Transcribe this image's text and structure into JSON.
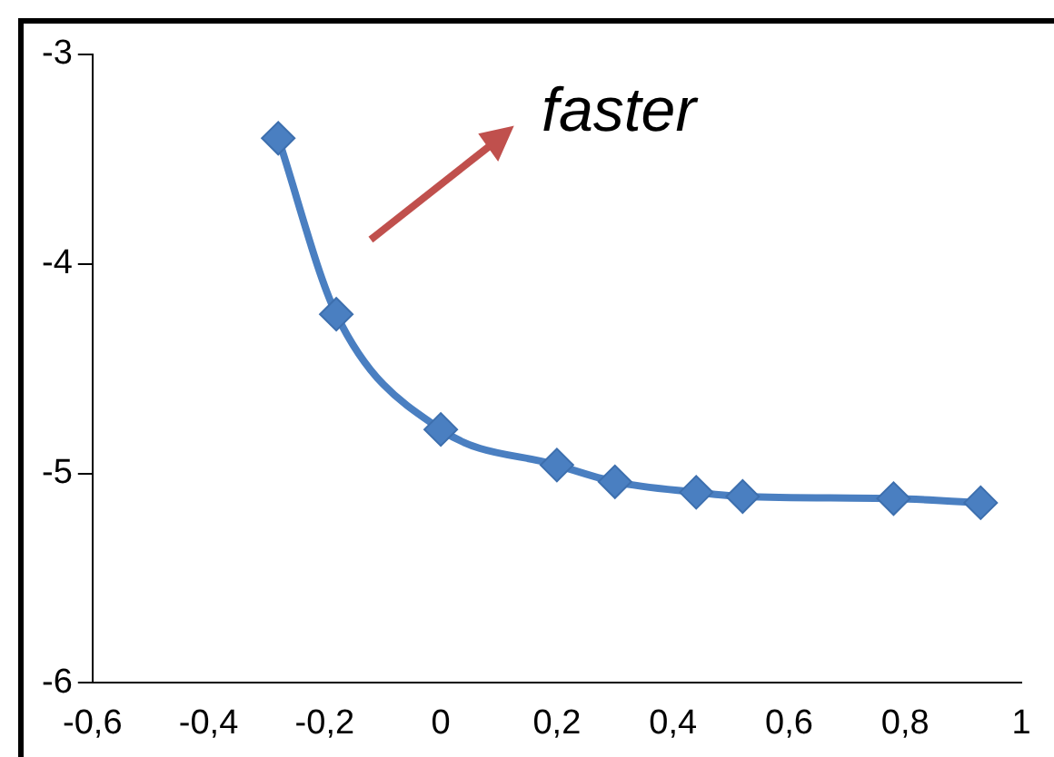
{
  "chart_data": {
    "type": "line",
    "x": [
      -0.28,
      -0.18,
      0,
      0.2,
      0.3,
      0.44,
      0.52,
      0.78,
      0.93
    ],
    "series": [
      {
        "color": "#4a7fc1",
        "values": [
          -3.4,
          -4.24,
          -4.79,
          -4.96,
          -5.04,
          -5.09,
          -5.11,
          -5.12,
          -5.14
        ]
      }
    ],
    "xlim": [
      -0.6,
      1
    ],
    "xticks": [
      {
        "value": -0.6,
        "label": "-0,6"
      },
      {
        "value": -0.4,
        "label": "-0,4"
      },
      {
        "value": -0.2,
        "label": "-0,2"
      },
      0,
      {
        "value": 0.2,
        "label": "0,2"
      },
      {
        "value": 0.4,
        "label": "0,4"
      },
      {
        "value": 0.6,
        "label": "0,6"
      },
      {
        "value": 0.8,
        "label": "0,8"
      },
      1
    ],
    "ylim": [
      -6,
      -3
    ],
    "yticks": [
      -6,
      -5,
      -4,
      -3
    ],
    "annotations": [
      "faster"
    ],
    "marker": "diamond",
    "line_style": "solid",
    "grid": false,
    "legend": false
  }
}
